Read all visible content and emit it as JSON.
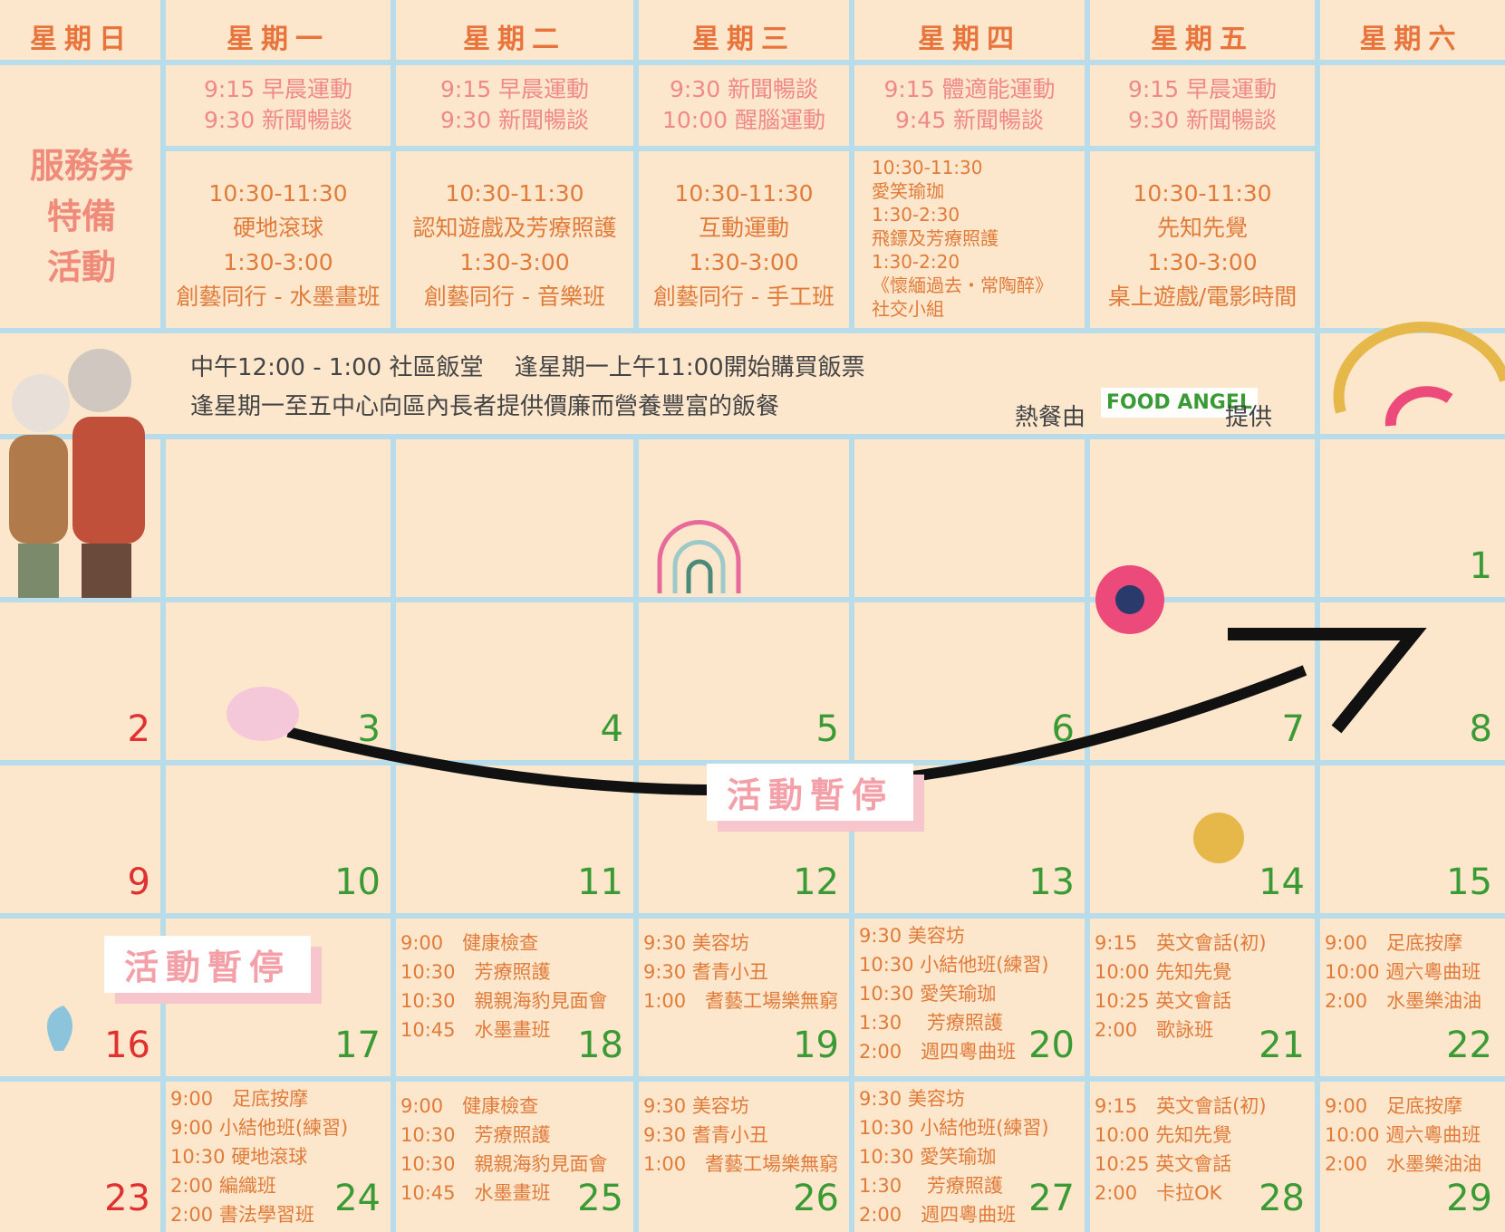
{
  "header": {
    "weekdays": [
      "星期日",
      "星期一",
      "星期二",
      "星期三",
      "星期四",
      "星期五",
      "星期六"
    ]
  },
  "special": {
    "label": [
      "服務券",
      "特備",
      "活動"
    ],
    "morning": [
      [
        "9:15 早晨運動",
        "9:30 新聞暢談"
      ],
      [
        "9:15 早晨運動",
        "9:30 新聞暢談"
      ],
      [
        "9:30 新聞暢談",
        "10:00 醒腦運動"
      ],
      [
        "9:15 體適能運動",
        "9:45 新聞暢談"
      ],
      [
        "9:15 早晨運動",
        "9:30 新聞暢談"
      ]
    ],
    "afternoon": [
      [
        "10:30-11:30",
        "硬地滾球",
        "1:30-3:00",
        "創藝同行 - 水墨畫班"
      ],
      [
        "10:30-11:30",
        "認知遊戲及芳療照護",
        "1:30-3:00",
        "創藝同行 - 音樂班"
      ],
      [
        "10:30-11:30",
        "互動運動",
        "1:30-3:00",
        "創藝同行 - 手工班"
      ],
      [
        "10:30-11:30",
        "愛笑瑜珈",
        "1:30-2:30",
        "飛鏢及芳療照護",
        "1:30-2:20",
        "《懷緬過去・常陶醉》",
        "社交小組"
      ],
      [
        "10:30-11:30",
        "先知先覺",
        "1:30-3:00",
        "桌上遊戲/電影時間"
      ]
    ]
  },
  "lunch": {
    "line1": "中午12:00 - 1:00  社區飯堂　 逢星期一上午11:00開始購買飯票",
    "line2": "逢星期一至五中心向區內長者提供價廉而營養豐富的飯餐",
    "provider_before": "熱餐由",
    "logo": "FOOD ANGEL",
    "provider_after": "提供"
  },
  "pause_notes": [
    "活動暫停",
    "活動暫停"
  ],
  "weeks": [
    [
      null,
      null,
      null,
      null,
      null,
      null,
      {
        "date": "1",
        "events": []
      }
    ],
    [
      {
        "date": "2",
        "events": []
      },
      {
        "date": "3",
        "events": []
      },
      {
        "date": "4",
        "events": []
      },
      {
        "date": "5",
        "events": []
      },
      {
        "date": "6",
        "events": []
      },
      {
        "date": "7",
        "events": []
      },
      {
        "date": "8",
        "events": []
      }
    ],
    [
      {
        "date": "9",
        "events": []
      },
      {
        "date": "10",
        "events": []
      },
      {
        "date": "11",
        "events": []
      },
      {
        "date": "12",
        "events": []
      },
      {
        "date": "13",
        "events": []
      },
      {
        "date": "14",
        "events": []
      },
      {
        "date": "15",
        "events": []
      }
    ],
    [
      {
        "date": "16",
        "events": []
      },
      {
        "date": "17",
        "events": []
      },
      {
        "date": "18",
        "events": [
          "9:00　健康檢查",
          "10:30　芳療照護",
          "10:30　親親海豹見面會",
          "10:45　水墨畫班"
        ]
      },
      {
        "date": "19",
        "events": [
          "9:30 美容坊",
          "9:30 耆青小丑",
          "1:00　耆藝工場樂無窮"
        ]
      },
      {
        "date": "20",
        "events": [
          "9:30 美容坊",
          "10:30 小結他班(練習)",
          "10:30 愛笑瑜珈",
          "1:30　 芳療照護",
          "2:00　週四粵曲班"
        ]
      },
      {
        "date": "21",
        "events": [
          "9:15　英文會話(初)",
          "10:00 先知先覺",
          "10:25 英文會話",
          "2:00　歌詠班"
        ]
      },
      {
        "date": "22",
        "events": [
          "9:00　足底按摩",
          "10:00 週六粵曲班",
          "2:00　水墨樂油油"
        ]
      }
    ],
    [
      {
        "date": "23",
        "events": []
      },
      {
        "date": "24",
        "events": [
          "9:00　足底按摩",
          "9:00 小結他班(練習)",
          "10:30 硬地滾球",
          "2:00 編織班",
          "2:00 書法學習班"
        ]
      },
      {
        "date": "25",
        "events": [
          "9:00　健康檢查",
          "10:30　芳療照護",
          "10:30　親親海豹見面會",
          "10:45　水墨畫班"
        ]
      },
      {
        "date": "26",
        "events": [
          "9:30 美容坊",
          "9:30 耆青小丑",
          "1:00　耆藝工場樂無窮"
        ]
      },
      {
        "date": "27",
        "events": [
          "9:30 美容坊",
          "10:30 小結他班(練習)",
          "10:30 愛笑瑜珈",
          "1:30　 芳療照護",
          "2:00　週四粵曲班"
        ]
      },
      {
        "date": "28",
        "events": [
          "9:15　英文會話(初)",
          "10:00 先知先覺",
          "10:25 英文會話",
          "2:00　卡拉OK"
        ]
      },
      {
        "date": "29",
        "events": [
          "9:00　足底按摩",
          "10:00 週六粵曲班",
          "2:00　水墨樂油油"
        ]
      }
    ]
  ]
}
